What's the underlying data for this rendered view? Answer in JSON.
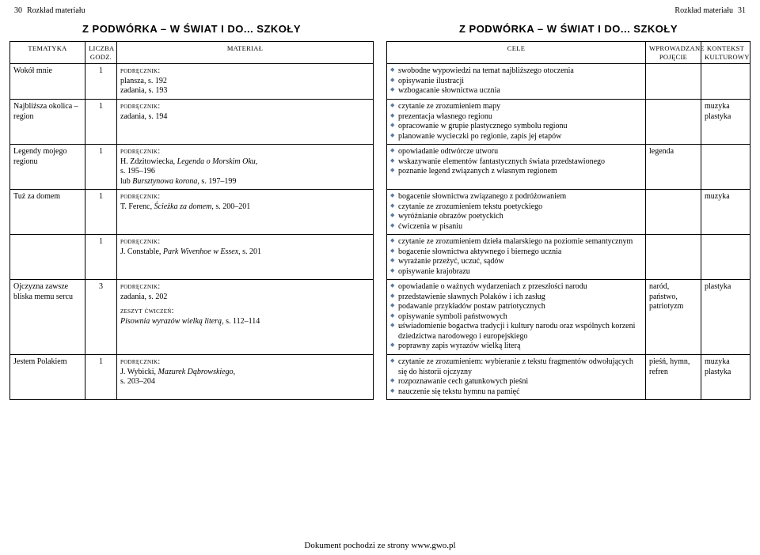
{
  "left_header": {
    "page_no": "30",
    "label": "Rozkład materiału"
  },
  "right_header": {
    "page_no": "31",
    "label": "Rozkład materiału"
  },
  "section_title_left": "Z PODWÓRKA – W ŚWIAT I DO... SZKOŁY",
  "section_title_right": "Z PODWÓRKA – W ŚWIAT I DO... SZKOŁY",
  "headers_left": {
    "tematyka": "TEMATYKA",
    "godz_top": "LICZBA",
    "godz_bottom": "GODZ.",
    "material": "MATERIAŁ"
  },
  "headers_right": {
    "cele": "CELE",
    "pojecie_top": "WPROWADZANE",
    "pojecie_bottom": "POJĘCIE",
    "kontekst_top": "KONTEKST",
    "kontekst_bottom": "KULTUROWY"
  },
  "labels": {
    "podrecznik": "podręcznik:",
    "zeszyt": "zeszyt ćwiczeń:"
  },
  "rows": [
    {
      "tematyka": "Wokół mnie",
      "godz": "1",
      "material": [
        {
          "lead": "podrecznik",
          "lines": [
            "plansza, s. 192",
            "zadania, s. 193"
          ]
        }
      ],
      "cele": [
        "swobodne wypowiedzi na temat najbliższego otoczenia",
        "opisywanie ilustracji",
        "wzbogacanie słownictwa ucznia"
      ],
      "pojecie": "",
      "kontekst": ""
    },
    {
      "tematyka": "Najbliższa okolica – region",
      "godz": "1",
      "material": [
        {
          "lead": "podrecznik",
          "lines": [
            "zadania, s. 194"
          ]
        }
      ],
      "cele": [
        "czytanie ze zrozumieniem mapy",
        "prezentacja własnego regionu",
        "opracowanie w grupie plastycznego symbolu regionu",
        "planowanie wycieczki po regionie, zapis jej etapów"
      ],
      "pojecie": "",
      "kontekst": "muzyka\nplastyka"
    },
    {
      "tematyka": "Legendy mojego regionu",
      "godz": "1",
      "material": [
        {
          "lead": "podrecznik",
          "lines": [
            [
              "H. Zdzitowiecka, ",
              {
                "ital": "Legenda o Morskim Oku"
              },
              ","
            ],
            "s. 195–196",
            [
              "lub ",
              {
                "ital": "Bursztynowa korona"
              },
              ", s. 197–199"
            ]
          ]
        }
      ],
      "cele": [
        "opowiadanie odtwórcze utworu",
        "wskazywanie elementów fantastycznych świata przedstawionego",
        "poznanie legend związanych z własnym regionem"
      ],
      "pojecie": "legenda",
      "kontekst": ""
    },
    {
      "tematyka": "Tuż za domem",
      "godz": "1",
      "material": [
        {
          "lead": "podrecznik",
          "lines": [
            [
              "T. Ferenc, ",
              {
                "ital": "Ścieżka za domem"
              },
              ", s. 200–201"
            ]
          ]
        }
      ],
      "cele": [
        "bogacenie słownictwa związanego z podróżowaniem",
        "czytanie ze zrozumieniem tekstu poetyckiego",
        "wyróżnianie obrazów poetyckich",
        "ćwiczenia w pisaniu"
      ],
      "pojecie": "",
      "kontekst": "muzyka"
    },
    {
      "tematyka": "",
      "godz": "1",
      "material": [
        {
          "lead": "podrecznik",
          "lines": [
            [
              "J. Constable, ",
              {
                "ital": "Park Wivenhoe w Essex"
              },
              ", s. 201"
            ]
          ]
        }
      ],
      "cele": [
        "czytanie ze zrozumieniem dzieła malarskiego na poziomie semantycznym",
        "bogacenie słownictwa aktywnego i biernego ucznia",
        "wyrażanie przeżyć, uczuć, sądów",
        "opisywanie krajobrazu"
      ],
      "pojecie": "",
      "kontekst": ""
    },
    {
      "tematyka": "Ojczyzna zawsze bliska memu sercu",
      "godz": "3",
      "material": [
        {
          "lead": "podrecznik",
          "lines": [
            "zadania, s. 202"
          ]
        },
        {
          "lead": "zeszyt",
          "lines": [
            [
              {
                "ital": "Pisownia wyrazów wielką literą"
              },
              ", s. 112–114"
            ]
          ]
        }
      ],
      "cele": [
        "opowiadanie o ważnych wydarzeniach z przeszłości narodu",
        "przedstawienie sławnych Polaków i ich zasług",
        "podawanie przykładów postaw patriotycznych",
        "opisywanie symboli państwowych",
        "uświadomienie bogactwa tradycji i kultury narodu oraz wspólnych korzeni dziedzictwa narodowego i europejskiego",
        "poprawny zapis wyrazów wielką literą"
      ],
      "pojecie": "naród,\npaństwo,\npatriotyzm",
      "kontekst": "plastyka"
    },
    {
      "tematyka": "Jestem Polakiem",
      "godz": "1",
      "material": [
        {
          "lead": "podrecznik",
          "lines": [
            [
              "J. Wybicki, ",
              {
                "ital": "Mazurek Dąbrowskiego"
              },
              ","
            ],
            "s. 203–204"
          ]
        }
      ],
      "cele": [
        "czytanie ze zrozumieniem: wybieranie z tekstu fragmentów odwołujących się do historii ojczyzny",
        "rozpoznawanie cech gatunkowych pieśni",
        "nauczenie się tekstu hymnu na pamięć"
      ],
      "pojecie": "pieśń, hymn,\nrefren",
      "kontekst": "muzyka\nplastyka"
    }
  ],
  "footer": "Dokument pochodzi ze strony www.gwo.pl"
}
